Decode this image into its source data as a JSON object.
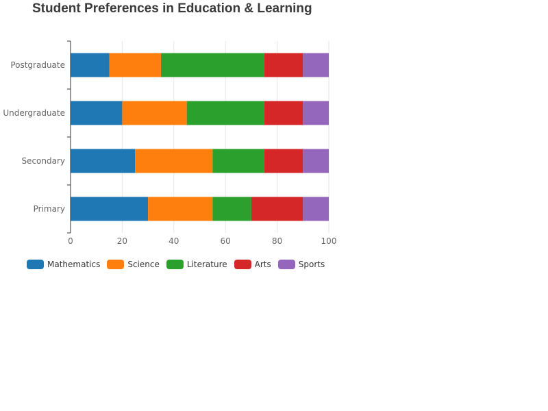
{
  "chart_data": {
    "type": "bar",
    "orientation": "horizontal",
    "stacked": true,
    "title": "Student Preferences in Education & Learning",
    "xlabel": "",
    "ylabel": "",
    "categories": [
      "Primary",
      "Secondary",
      "Undergraduate",
      "Postgraduate"
    ],
    "xlim": [
      0,
      100
    ],
    "xticks": [
      0,
      20,
      40,
      60,
      80,
      100
    ],
    "grid": true,
    "legend_position": "bottom-left",
    "series": [
      {
        "name": "Mathematics",
        "color": "#1f77b4",
        "values": [
          30,
          25,
          20,
          15
        ]
      },
      {
        "name": "Science",
        "color": "#ff7f0e",
        "values": [
          25,
          30,
          25,
          20
        ]
      },
      {
        "name": "Literature",
        "color": "#2ca02c",
        "values": [
          15,
          20,
          30,
          40
        ]
      },
      {
        "name": "Arts",
        "color": "#d62728",
        "values": [
          20,
          15,
          15,
          15
        ]
      },
      {
        "name": "Sports",
        "color": "#9467bd",
        "values": [
          10,
          10,
          10,
          10
        ]
      }
    ]
  }
}
